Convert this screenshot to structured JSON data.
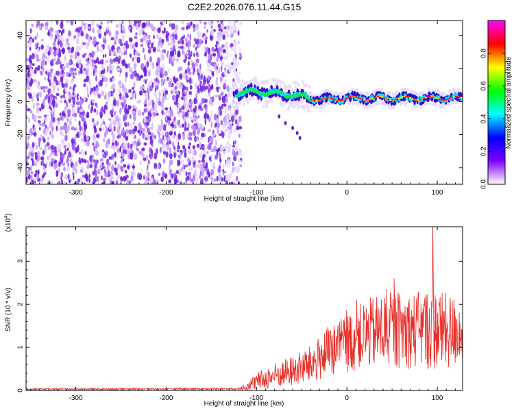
{
  "title": "C2E2.2026.076.11.44.G15",
  "chart_data": [
    {
      "type": "heatmap",
      "title": "C2E2.2026.076.11.44.G15",
      "xlabel": "Height of straight line (km)",
      "ylabel": "Frequency (Hz)",
      "xlim": [
        -355,
        128
      ],
      "ylim": [
        -50,
        49
      ],
      "xticks": [
        -300,
        -200,
        -100,
        0,
        100
      ],
      "yticks": [
        -40,
        -20,
        0,
        20,
        40
      ],
      "colorbar": {
        "label": "Normalized spectral amplitude",
        "range": [
          0.0,
          1.0
        ],
        "ticks": [
          "0.0",
          "0.2",
          "0.4",
          "0.6",
          "0.8"
        ],
        "colors": [
          "#ffffff",
          "#7f00ff",
          "#0000ff",
          "#00ffff",
          "#00ff00",
          "#ffff00",
          "#ff0000",
          "#ff00ff"
        ]
      },
      "description_features": {
        "noise_region_x": [
          -355,
          -125
        ],
        "signal_start_x": -125,
        "signal_center_freq_hz": [
          [
            -125,
            5
          ],
          [
            -100,
            6
          ],
          [
            -60,
            4
          ],
          [
            -30,
            1
          ],
          [
            0,
            2
          ],
          [
            40,
            2
          ],
          [
            80,
            2
          ],
          [
            128,
            2
          ]
        ]
      }
    },
    {
      "type": "line",
      "xlabel": "Height of straight line (km)",
      "ylabel": "SNR (10 * v/v)",
      "y_multiplier": "(x10^4)",
      "xlim": [
        -355,
        128
      ],
      "ylim": [
        0,
        3.8
      ],
      "xticks": [
        -300,
        -200,
        -100,
        0,
        100
      ],
      "yticks": [
        0,
        1,
        2,
        3
      ],
      "series": [
        {
          "name": "SNR",
          "color": "#e8302a",
          "envelope_x": [
            -355,
            -120,
            -100,
            -80,
            -60,
            -40,
            -20,
            0,
            20,
            40,
            60,
            80,
            95,
            110,
            128
          ],
          "envelope_mean": [
            0.03,
            0.04,
            0.2,
            0.35,
            0.45,
            0.6,
            0.9,
            1.1,
            1.3,
            1.4,
            1.4,
            1.4,
            1.45,
            1.35,
            1.4
          ],
          "envelope_amp": [
            0.02,
            0.02,
            0.2,
            0.3,
            0.35,
            0.45,
            0.6,
            0.7,
            0.8,
            0.9,
            0.9,
            0.9,
            1.0,
            0.9,
            0.8
          ],
          "peak": {
            "x": 95,
            "y": 3.8
          }
        }
      ]
    }
  ]
}
